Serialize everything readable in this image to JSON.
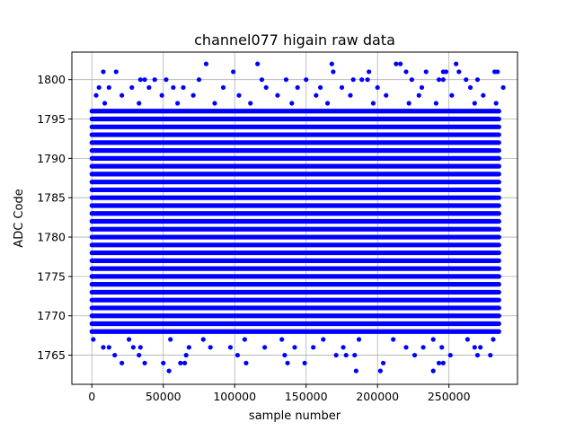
{
  "chart_data": {
    "type": "scatter",
    "title": "channel077 higain raw data",
    "xlabel": "sample number",
    "ylabel": "ADC Code",
    "xlim": [
      -14000,
      298000
    ],
    "ylim": [
      1761.3,
      1803.5
    ],
    "x_ticks": [
      0,
      50000,
      100000,
      150000,
      200000,
      250000
    ],
    "y_ticks": [
      1765,
      1770,
      1775,
      1780,
      1785,
      1790,
      1795,
      1800
    ],
    "grid": true,
    "marker_color": "#0000ff",
    "series": [
      {
        "x_range": [
          0,
          285000
        ],
        "dense_levels": [
          1768,
          1769,
          1770,
          1771,
          1772,
          1773,
          1774,
          1775,
          1776,
          1777,
          1778,
          1779,
          1780,
          1781,
          1782,
          1783,
          1784,
          1785,
          1786,
          1787,
          1788,
          1789,
          1790,
          1791,
          1792,
          1793,
          1794,
          1795,
          1796
        ],
        "sparse_points": [
          {
            "x": 80000,
            "y": 1802
          },
          {
            "x": 116000,
            "y": 1802
          },
          {
            "x": 168000,
            "y": 1802
          },
          {
            "x": 213000,
            "y": 1802
          },
          {
            "x": 216000,
            "y": 1802
          },
          {
            "x": 255000,
            "y": 1802
          },
          {
            "x": 8000,
            "y": 1801
          },
          {
            "x": 17000,
            "y": 1801
          },
          {
            "x": 99000,
            "y": 1801
          },
          {
            "x": 169000,
            "y": 1801
          },
          {
            "x": 194000,
            "y": 1801
          },
          {
            "x": 220000,
            "y": 1801
          },
          {
            "x": 234000,
            "y": 1801
          },
          {
            "x": 246000,
            "y": 1801
          },
          {
            "x": 248000,
            "y": 1801
          },
          {
            "x": 257000,
            "y": 1801
          },
          {
            "x": 282000,
            "y": 1801
          },
          {
            "x": 284000,
            "y": 1801
          },
          {
            "x": 34000,
            "y": 1800
          },
          {
            "x": 37000,
            "y": 1800
          },
          {
            "x": 44000,
            "y": 1800
          },
          {
            "x": 52000,
            "y": 1800
          },
          {
            "x": 75000,
            "y": 1800
          },
          {
            "x": 119000,
            "y": 1800
          },
          {
            "x": 136000,
            "y": 1800
          },
          {
            "x": 150000,
            "y": 1800
          },
          {
            "x": 183000,
            "y": 1800
          },
          {
            "x": 189000,
            "y": 1800
          },
          {
            "x": 193000,
            "y": 1800
          },
          {
            "x": 224000,
            "y": 1800
          },
          {
            "x": 243000,
            "y": 1800
          },
          {
            "x": 246000,
            "y": 1800
          },
          {
            "x": 262000,
            "y": 1800
          },
          {
            "x": 270000,
            "y": 1800
          },
          {
            "x": 5000,
            "y": 1799
          },
          {
            "x": 12000,
            "y": 1799
          },
          {
            "x": 28000,
            "y": 1799
          },
          {
            "x": 40000,
            "y": 1799
          },
          {
            "x": 57000,
            "y": 1799
          },
          {
            "x": 64000,
            "y": 1799
          },
          {
            "x": 92000,
            "y": 1799
          },
          {
            "x": 122000,
            "y": 1799
          },
          {
            "x": 144000,
            "y": 1799
          },
          {
            "x": 160000,
            "y": 1799
          },
          {
            "x": 175000,
            "y": 1799
          },
          {
            "x": 200000,
            "y": 1799
          },
          {
            "x": 231000,
            "y": 1799
          },
          {
            "x": 265000,
            "y": 1799
          },
          {
            "x": 288000,
            "y": 1799
          },
          {
            "x": 3000,
            "y": 1798
          },
          {
            "x": 21000,
            "y": 1798
          },
          {
            "x": 49000,
            "y": 1798
          },
          {
            "x": 71000,
            "y": 1798
          },
          {
            "x": 103000,
            "y": 1798
          },
          {
            "x": 130000,
            "y": 1798
          },
          {
            "x": 157000,
            "y": 1798
          },
          {
            "x": 181000,
            "y": 1798
          },
          {
            "x": 206000,
            "y": 1798
          },
          {
            "x": 229000,
            "y": 1798
          },
          {
            "x": 252000,
            "y": 1798
          },
          {
            "x": 274000,
            "y": 1798
          },
          {
            "x": 9000,
            "y": 1797
          },
          {
            "x": 33000,
            "y": 1797
          },
          {
            "x": 60000,
            "y": 1797
          },
          {
            "x": 86000,
            "y": 1797
          },
          {
            "x": 111000,
            "y": 1797
          },
          {
            "x": 140000,
            "y": 1797
          },
          {
            "x": 165000,
            "y": 1797
          },
          {
            "x": 197000,
            "y": 1797
          },
          {
            "x": 222000,
            "y": 1797
          },
          {
            "x": 241000,
            "y": 1797
          },
          {
            "x": 268000,
            "y": 1797
          },
          {
            "x": 283000,
            "y": 1797
          },
          {
            "x": 1000,
            "y": 1767
          },
          {
            "x": 26000,
            "y": 1767
          },
          {
            "x": 55000,
            "y": 1767
          },
          {
            "x": 78000,
            "y": 1767
          },
          {
            "x": 107000,
            "y": 1767
          },
          {
            "x": 133000,
            "y": 1767
          },
          {
            "x": 162000,
            "y": 1767
          },
          {
            "x": 187000,
            "y": 1767
          },
          {
            "x": 211000,
            "y": 1767
          },
          {
            "x": 239000,
            "y": 1767
          },
          {
            "x": 263000,
            "y": 1767
          },
          {
            "x": 281000,
            "y": 1767
          },
          {
            "x": 8000,
            "y": 1766
          },
          {
            "x": 12000,
            "y": 1766
          },
          {
            "x": 29000,
            "y": 1766
          },
          {
            "x": 34000,
            "y": 1766
          },
          {
            "x": 68000,
            "y": 1766
          },
          {
            "x": 83000,
            "y": 1766
          },
          {
            "x": 97000,
            "y": 1766
          },
          {
            "x": 121000,
            "y": 1766
          },
          {
            "x": 142000,
            "y": 1766
          },
          {
            "x": 155000,
            "y": 1766
          },
          {
            "x": 176000,
            "y": 1766
          },
          {
            "x": 220000,
            "y": 1766
          },
          {
            "x": 232000,
            "y": 1766
          },
          {
            "x": 245000,
            "y": 1766
          },
          {
            "x": 268000,
            "y": 1766
          },
          {
            "x": 272000,
            "y": 1766
          },
          {
            "x": 16000,
            "y": 1765
          },
          {
            "x": 33000,
            "y": 1765
          },
          {
            "x": 66000,
            "y": 1765
          },
          {
            "x": 102000,
            "y": 1765
          },
          {
            "x": 135000,
            "y": 1765
          },
          {
            "x": 171000,
            "y": 1765
          },
          {
            "x": 178000,
            "y": 1765
          },
          {
            "x": 184000,
            "y": 1765
          },
          {
            "x": 226000,
            "y": 1765
          },
          {
            "x": 251000,
            "y": 1765
          },
          {
            "x": 270000,
            "y": 1765
          },
          {
            "x": 279000,
            "y": 1765
          },
          {
            "x": 21000,
            "y": 1764
          },
          {
            "x": 37000,
            "y": 1764
          },
          {
            "x": 50000,
            "y": 1764
          },
          {
            "x": 62000,
            "y": 1764
          },
          {
            "x": 65000,
            "y": 1764
          },
          {
            "x": 108000,
            "y": 1764
          },
          {
            "x": 137000,
            "y": 1764
          },
          {
            "x": 149000,
            "y": 1764
          },
          {
            "x": 204000,
            "y": 1764
          },
          {
            "x": 243000,
            "y": 1764
          },
          {
            "x": 246000,
            "y": 1764
          },
          {
            "x": 54000,
            "y": 1763
          },
          {
            "x": 185000,
            "y": 1763
          },
          {
            "x": 202000,
            "y": 1763
          },
          {
            "x": 239000,
            "y": 1763
          }
        ]
      }
    ]
  }
}
